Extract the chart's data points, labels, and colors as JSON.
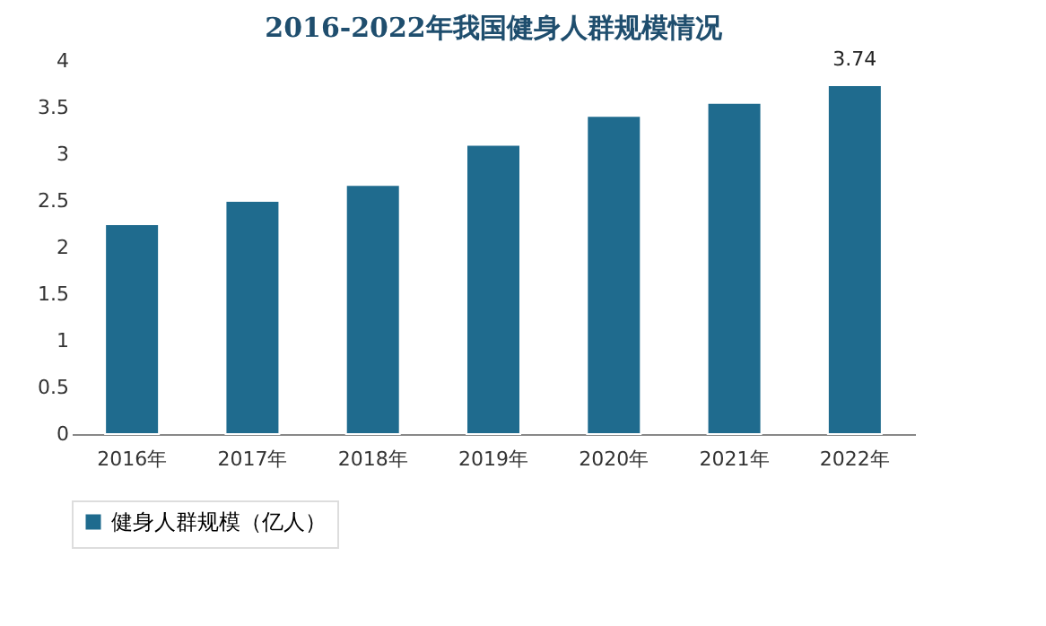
{
  "chart_data": {
    "type": "bar",
    "title": "2016-2022年我国健身人群规模情况",
    "categories": [
      "2016年",
      "2017年",
      "2018年",
      "2019年",
      "2020年",
      "2021年",
      "2022年"
    ],
    "series": [
      {
        "name": "健身人群规模（亿人）",
        "color": "#1f6b8e",
        "values": [
          2.25,
          2.5,
          2.67,
          3.1,
          3.41,
          3.55,
          3.74
        ],
        "value_labels": [
          null,
          null,
          null,
          null,
          null,
          null,
          "3.74"
        ]
      }
    ],
    "ylim": [
      0,
      4
    ],
    "yticks": [
      0,
      0.5,
      1,
      1.5,
      2,
      2.5,
      3,
      3.5,
      4
    ],
    "grid": false,
    "legend": "bottom"
  }
}
